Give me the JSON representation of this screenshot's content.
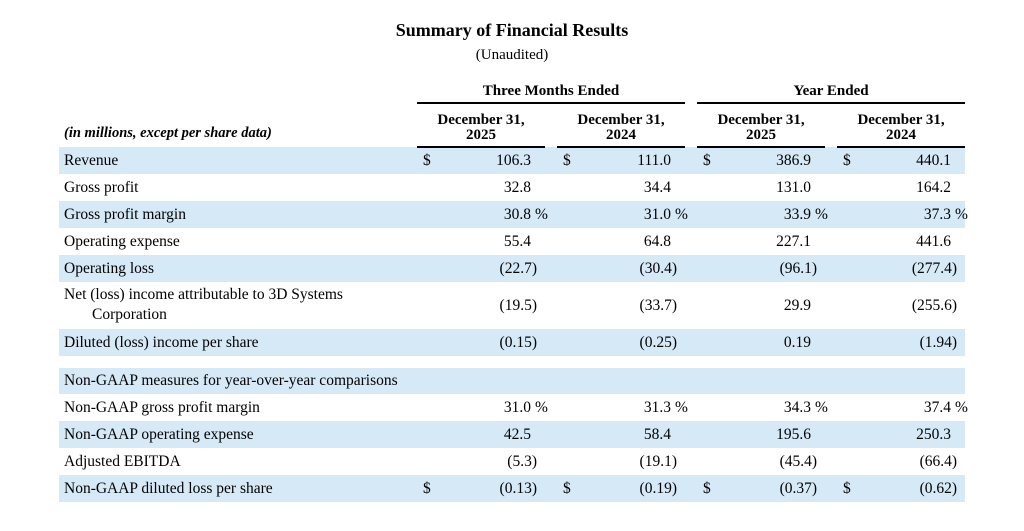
{
  "title": "Summary of Financial Results",
  "subtitle": "(Unaudited)",
  "table": {
    "note": "(in millions, except per share data)",
    "col_groups": [
      {
        "label": "Three Months Ended",
        "columns": [
          "December 31, 2025",
          "December 31, 2024"
        ]
      },
      {
        "label": "Year Ended",
        "columns": [
          "December 31, 2025",
          "December 31, 2024"
        ]
      }
    ],
    "rows": [
      {
        "type": "data",
        "label": "Revenue",
        "currency": "$",
        "values": [
          "106.3",
          "111.0",
          "386.9",
          "440.1"
        ],
        "shaded": true
      },
      {
        "type": "data",
        "label": "Gross profit",
        "values": [
          "32.8",
          "34.4",
          "131.0",
          "164.2"
        ],
        "shaded": false
      },
      {
        "type": "data",
        "label": "Gross profit margin",
        "suffix": "%",
        "values": [
          "30.8",
          "31.0",
          "33.9",
          "37.3"
        ],
        "shaded": true
      },
      {
        "type": "data",
        "label": "Operating expense",
        "values": [
          "55.4",
          "64.8",
          "227.1",
          "441.6"
        ],
        "shaded": false
      },
      {
        "type": "data",
        "label": "Operating loss",
        "values": [
          "(22.7)",
          "(30.4)",
          "(96.1)",
          "(277.4)"
        ],
        "shaded": true
      },
      {
        "type": "data",
        "label": "Net (loss) income attributable to 3D Systems",
        "label2": "Corporation",
        "values": [
          "(19.5)",
          "(33.7)",
          "29.9",
          "(255.6)"
        ],
        "shaded": false
      },
      {
        "type": "data",
        "label": "Diluted (loss) income per share",
        "values": [
          "(0.15)",
          "(0.25)",
          "0.19",
          "(1.94)"
        ],
        "shaded": true
      },
      {
        "type": "spacer"
      },
      {
        "type": "section",
        "label": "Non-GAAP measures for year-over-year comparisons",
        "shaded": true
      },
      {
        "type": "data",
        "label": "Non-GAAP gross profit margin",
        "suffix": "%",
        "values": [
          "31.0",
          "31.3",
          "34.3",
          "37.4"
        ],
        "shaded": false
      },
      {
        "type": "data",
        "label": "Non-GAAP operating expense",
        "values": [
          "42.5",
          "58.4",
          "195.6",
          "250.3"
        ],
        "shaded": true
      },
      {
        "type": "data",
        "label": "Adjusted EBITDA",
        "values": [
          "(5.3)",
          "(19.1)",
          "(45.4)",
          "(66.4)"
        ],
        "shaded": false
      },
      {
        "type": "data",
        "label": "Non-GAAP diluted loss per share",
        "currency": "$",
        "values": [
          "(0.13)",
          "(0.19)",
          "(0.37)",
          "(0.62)"
        ],
        "shaded": true
      }
    ]
  },
  "colors": {
    "row_shade": "#d6e9f7",
    "rule": "#000000"
  }
}
